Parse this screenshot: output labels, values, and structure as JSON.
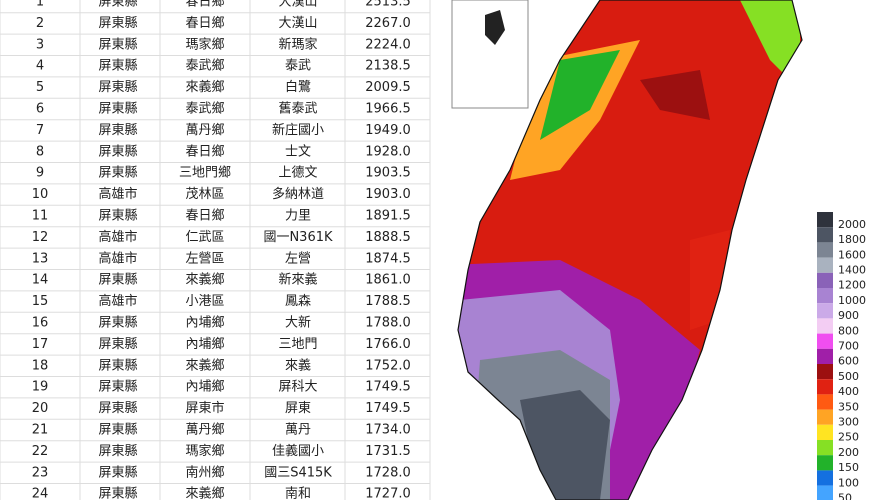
{
  "table": {
    "rows": [
      [
        "1",
        "屏東縣",
        "春日鄉",
        "大漢山",
        "2513.5"
      ],
      [
        "2",
        "屏東縣",
        "春日鄉",
        "大漢山",
        "2267.0"
      ],
      [
        "3",
        "屏東縣",
        "瑪家鄉",
        "新瑪家",
        "2224.0"
      ],
      [
        "4",
        "屏東縣",
        "泰武鄉",
        "泰武",
        "2138.5"
      ],
      [
        "5",
        "屏東縣",
        "來義鄉",
        "白鷺",
        "2009.5"
      ],
      [
        "6",
        "屏東縣",
        "泰武鄉",
        "舊泰武",
        "1966.5"
      ],
      [
        "7",
        "屏東縣",
        "萬丹鄉",
        "新庄國小",
        "1949.0"
      ],
      [
        "8",
        "屏東縣",
        "春日鄉",
        "士文",
        "1928.0"
      ],
      [
        "9",
        "屏東縣",
        "三地門鄉",
        "上德文",
        "1903.5"
      ],
      [
        "10",
        "高雄市",
        "茂林區",
        "多納林道",
        "1903.0"
      ],
      [
        "11",
        "屏東縣",
        "春日鄉",
        "力里",
        "1891.5"
      ],
      [
        "12",
        "高雄市",
        "仁武區",
        "國一N361K",
        "1888.5"
      ],
      [
        "13",
        "高雄市",
        "左營區",
        "左營",
        "1874.5"
      ],
      [
        "14",
        "屏東縣",
        "來義鄉",
        "新來義",
        "1861.0"
      ],
      [
        "15",
        "高雄市",
        "小港區",
        "鳳森",
        "1788.5"
      ],
      [
        "16",
        "屏東縣",
        "內埔鄉",
        "大新",
        "1788.0"
      ],
      [
        "17",
        "屏東縣",
        "內埔鄉",
        "三地門",
        "1766.0"
      ],
      [
        "18",
        "屏東縣",
        "來義鄉",
        "來義",
        "1752.0"
      ],
      [
        "19",
        "屏東縣",
        "內埔鄉",
        "屏科大",
        "1749.5"
      ],
      [
        "20",
        "屏東縣",
        "屏東市",
        "屏東",
        "1749.5"
      ],
      [
        "21",
        "屏東縣",
        "萬丹鄉",
        "萬丹",
        "1734.0"
      ],
      [
        "22",
        "屏東縣",
        "瑪家鄉",
        "佳義國小",
        "1731.5"
      ],
      [
        "23",
        "屏東縣",
        "南州鄉",
        "國三S415K",
        "1728.0"
      ],
      [
        "24",
        "屏東縣",
        "來義鄉",
        "南和",
        "1727.0"
      ]
    ]
  },
  "legend": {
    "items": [
      {
        "label": "2000",
        "color": "#2e323c"
      },
      {
        "label": "1800",
        "color": "#4d5563"
      },
      {
        "label": "1600",
        "color": "#7c8593"
      },
      {
        "label": "1400",
        "color": "#a9b2bf"
      },
      {
        "label": "1200",
        "color": "#8a62b8"
      },
      {
        "label": "1000",
        "color": "#a883d2"
      },
      {
        "label": "900",
        "color": "#cbaae8"
      },
      {
        "label": "800",
        "color": "#f3cdf3"
      },
      {
        "label": "700",
        "color": "#f04ef0"
      },
      {
        "label": "600",
        "color": "#a01fa8"
      },
      {
        "label": "500",
        "color": "#9c1010"
      },
      {
        "label": "400",
        "color": "#e02212"
      },
      {
        "label": "350",
        "color": "#ff5a12"
      },
      {
        "label": "300",
        "color": "#ffa424"
      },
      {
        "label": "250",
        "color": "#ffe422"
      },
      {
        "label": "200",
        "color": "#86e024"
      },
      {
        "label": "150",
        "color": "#22b22a"
      },
      {
        "label": "100",
        "color": "#1470e0"
      },
      {
        "label": "50",
        "color": "#44a4ff"
      }
    ]
  }
}
